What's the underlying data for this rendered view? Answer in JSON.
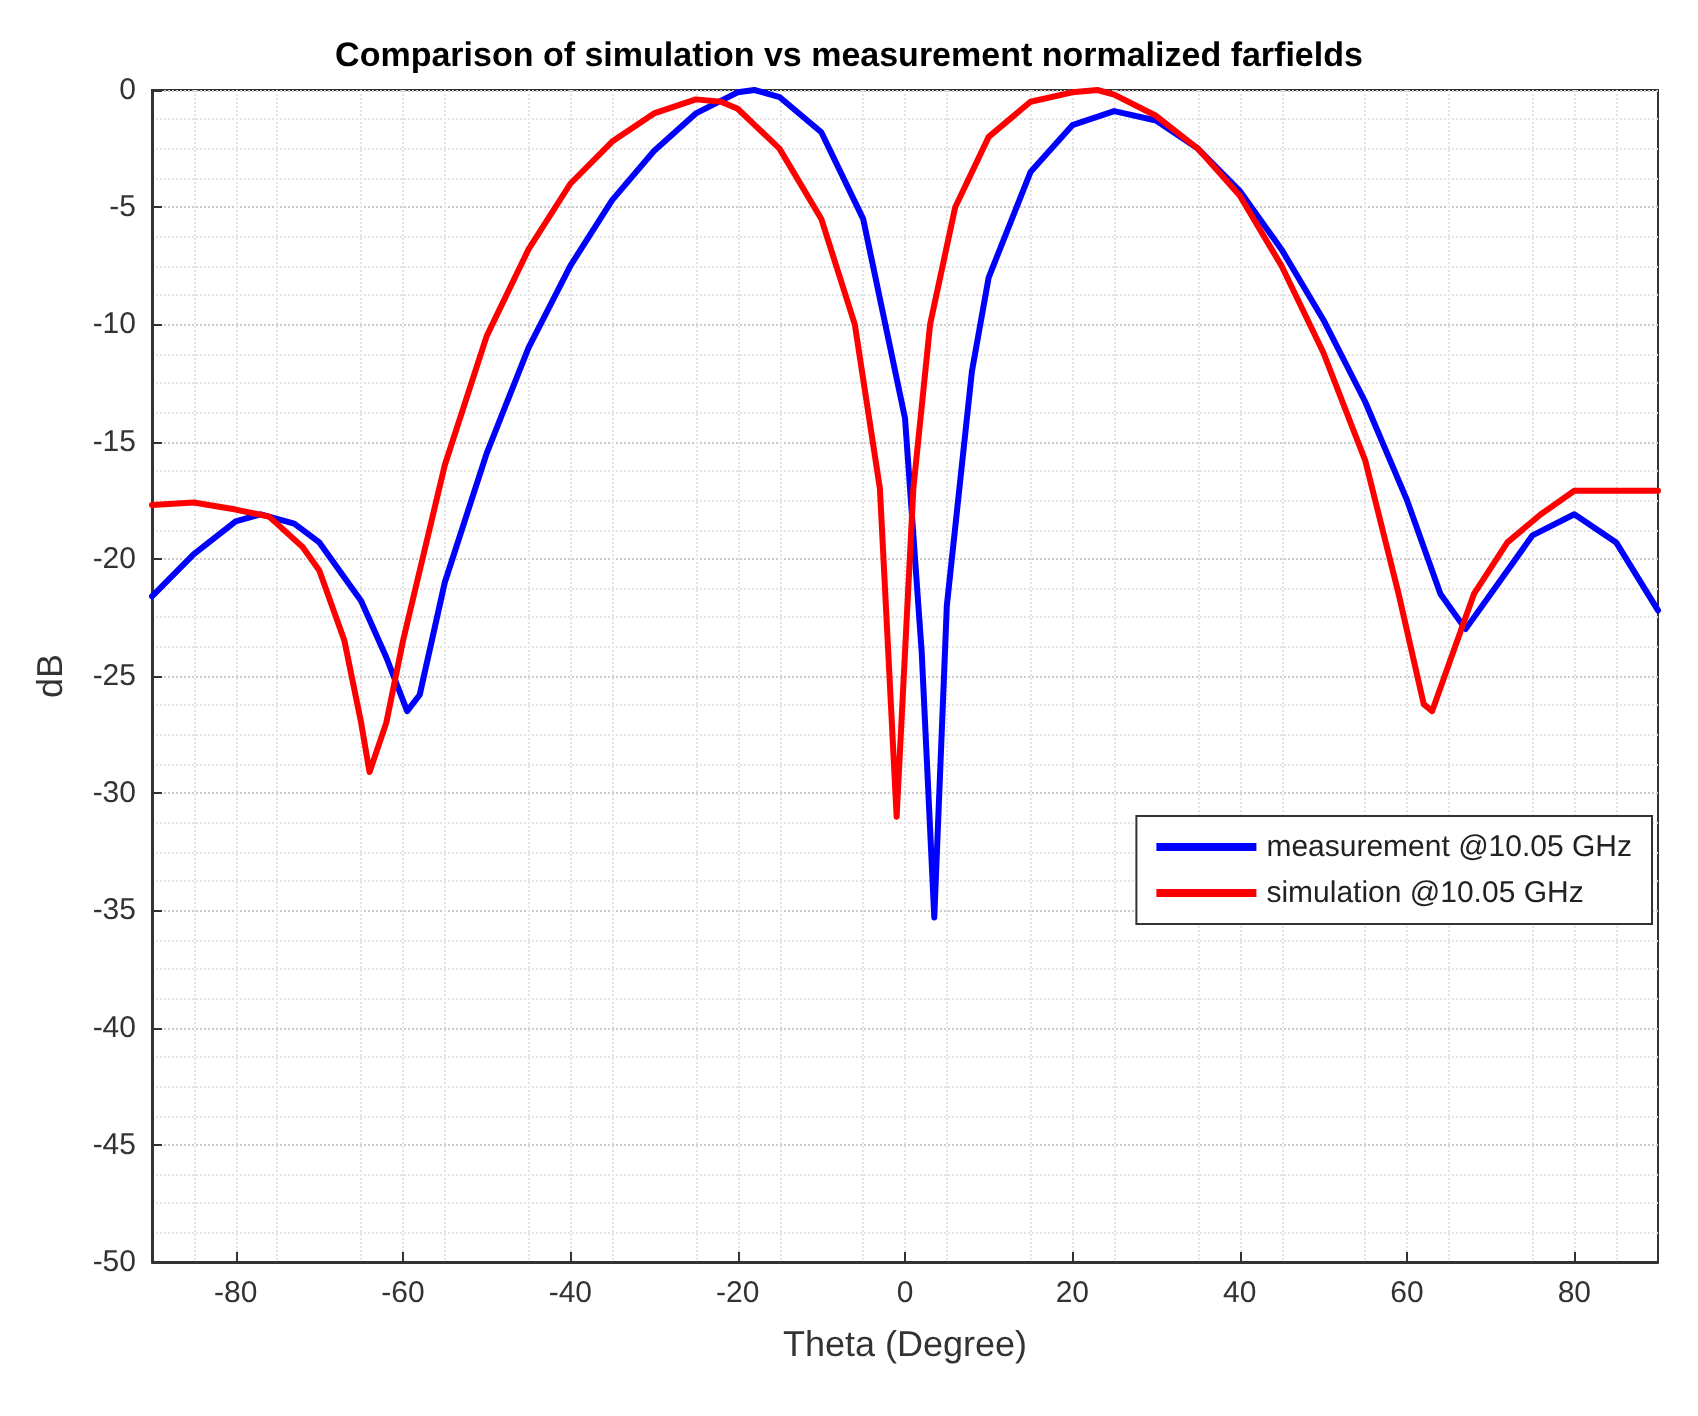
{
  "chart_data": {
    "type": "line",
    "title": "Comparison of simulation vs measurement normalized farfields",
    "xlabel": "Theta (Degree)",
    "ylabel": "dB",
    "xlim": [
      -90,
      90
    ],
    "xticks": [
      -80,
      -60,
      -40,
      -20,
      0,
      20,
      40,
      60,
      80
    ],
    "ylim": [
      -50,
      0
    ],
    "yticks": [
      -50,
      -45,
      -40,
      -35,
      -30,
      -25,
      -20,
      -15,
      -10,
      -5,
      0
    ],
    "grid": true,
    "legend": "right",
    "marker": "none",
    "line_style": "solid",
    "series": [
      {
        "name": "measurement @10.05 GHz",
        "color": "#0000ff",
        "x": [
          -90,
          -85,
          -80,
          -77,
          -73,
          -70,
          -65,
          -62,
          -59.5,
          -58,
          -55,
          -50,
          -45,
          -40,
          -35,
          -30,
          -25,
          -20,
          -18,
          -15,
          -10,
          -5,
          0,
          2,
          3.5,
          5,
          8,
          10,
          15,
          20,
          25,
          30,
          35,
          40,
          45,
          50,
          55,
          60,
          64,
          67,
          70,
          75,
          80,
          85,
          90
        ],
        "values": [
          -21.6,
          -19.8,
          -18.4,
          -18.1,
          -18.5,
          -19.3,
          -21.8,
          -24.2,
          -26.5,
          -25.8,
          -21,
          -15.5,
          -11,
          -7.5,
          -4.7,
          -2.6,
          -1.0,
          -0.1,
          0,
          -0.3,
          -1.8,
          -5.5,
          -14,
          -24,
          -35.3,
          -22,
          -12,
          -8,
          -3.5,
          -1.5,
          -0.9,
          -1.3,
          -2.5,
          -4.3,
          -6.8,
          -9.8,
          -13.3,
          -17.5,
          -21.5,
          -23,
          -21.5,
          -19,
          -18.1,
          -19.3,
          -22.2
        ]
      },
      {
        "name": "simulation @10.05 GHz",
        "color": "#ff0000",
        "x": [
          -90,
          -85,
          -80,
          -76,
          -72,
          -70,
          -67,
          -65,
          -64,
          -62,
          -60,
          -57,
          -55,
          -50,
          -45,
          -40,
          -35,
          -30,
          -25,
          -22,
          -20,
          -15,
          -10,
          -6,
          -3,
          -1,
          1,
          3,
          6,
          10,
          15,
          20,
          23,
          25,
          30,
          35,
          40,
          45,
          50,
          55,
          59,
          62,
          63,
          65,
          68,
          72,
          76,
          80,
          85,
          90
        ],
        "values": [
          -17.7,
          -17.6,
          -17.9,
          -18.2,
          -19.5,
          -20.5,
          -23.5,
          -27,
          -29.1,
          -27,
          -23.5,
          -19,
          -16,
          -10.5,
          -6.8,
          -4,
          -2.2,
          -1.0,
          -0.4,
          -0.5,
          -0.8,
          -2.5,
          -5.5,
          -10,
          -17,
          -31,
          -17,
          -10,
          -5,
          -2,
          -0.5,
          -0.1,
          0,
          -0.2,
          -1.1,
          -2.5,
          -4.5,
          -7.5,
          -11.2,
          -15.8,
          -21.5,
          -26.2,
          -26.5,
          -24.5,
          -21.5,
          -19.3,
          -18.1,
          -17.1,
          -17.1,
          -17.1
        ]
      }
    ]
  }
}
